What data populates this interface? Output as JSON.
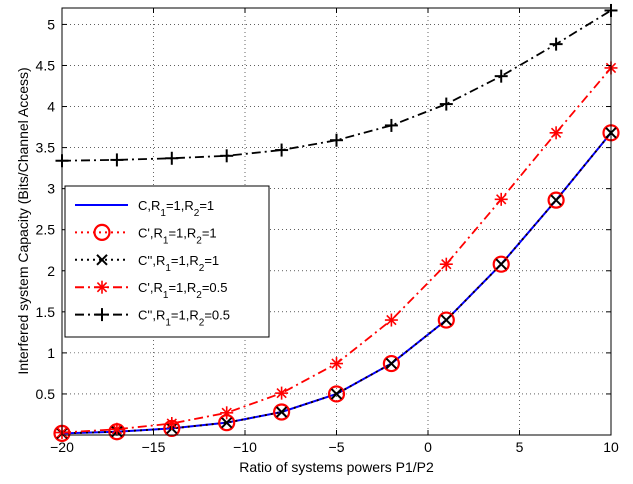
{
  "chart_data": {
    "type": "line",
    "xlabel": "Ratio of systems powers P1/P2",
    "ylabel": "Interfered system Capacity (Bits/Channel Access)",
    "xlim": [
      -20,
      10
    ],
    "ylim": [
      0,
      5.2
    ],
    "xticks": [
      -20,
      -15,
      -10,
      -5,
      0,
      5,
      10
    ],
    "yticks": [
      0.5,
      1,
      1.5,
      2,
      2.5,
      3,
      3.5,
      4,
      4.5,
      5
    ],
    "grid": true,
    "legend_position": "middle-left",
    "series": [
      {
        "name": "C,R1=1,R2=1",
        "legend": {
          "main": "C,R",
          "s1": "1",
          "mid": "=1,R",
          "s2": "2",
          "end": "=1"
        },
        "color": "#0000ff",
        "line": "solid",
        "marker": "none",
        "x": [
          -20,
          -17,
          -14,
          -11,
          -8,
          -5,
          -2,
          1,
          4,
          7,
          10
        ],
        "y": [
          0.02,
          0.04,
          0.08,
          0.15,
          0.28,
          0.5,
          0.87,
          1.4,
          2.08,
          2.86,
          3.68
        ]
      },
      {
        "name": "C',R1=1,R2=1",
        "legend": {
          "main": "C',R",
          "s1": "1",
          "mid": "=1,R",
          "s2": "2",
          "end": "=1"
        },
        "color": "#ff0000",
        "line": "dotted",
        "marker": "circle",
        "x": [
          -20,
          -17,
          -14,
          -11,
          -8,
          -5,
          -2,
          1,
          4,
          7,
          10
        ],
        "y": [
          0.02,
          0.04,
          0.08,
          0.15,
          0.28,
          0.5,
          0.87,
          1.4,
          2.08,
          2.86,
          3.68
        ]
      },
      {
        "name": "C'',R1=1,R2=1",
        "legend": {
          "main": "C'',R",
          "s1": "1",
          "mid": "=1,R",
          "s2": "2",
          "end": "=1"
        },
        "color": "#000000",
        "line": "dotted",
        "marker": "x",
        "x": [
          -20,
          -17,
          -14,
          -11,
          -8,
          -5,
          -2,
          1,
          4,
          7,
          10
        ],
        "y": [
          0.02,
          0.04,
          0.08,
          0.15,
          0.28,
          0.5,
          0.87,
          1.4,
          2.08,
          2.86,
          3.68
        ]
      },
      {
        "name": "C',R1=1,R2=0.5",
        "legend": {
          "main": "C',R",
          "s1": "1",
          "mid": "=1,R",
          "s2": "2",
          "end": "=0.5"
        },
        "color": "#ff0000",
        "line": "dashdot",
        "marker": "star",
        "x": [
          -20,
          -17,
          -14,
          -11,
          -8,
          -5,
          -2,
          1,
          4,
          7,
          10
        ],
        "y": [
          0.03,
          0.07,
          0.14,
          0.27,
          0.51,
          0.87,
          1.4,
          2.08,
          2.87,
          3.68,
          4.47
        ]
      },
      {
        "name": "C'',R1=1,R2=0.5",
        "legend": {
          "main": "C'',R",
          "s1": "1",
          "mid": "=1,R",
          "s2": "2",
          "end": "=0.5"
        },
        "color": "#000000",
        "line": "dashdot",
        "marker": "plus",
        "x": [
          -20,
          -17,
          -14,
          -11,
          -8,
          -5,
          -2,
          1,
          4,
          7,
          10
        ],
        "y": [
          3.34,
          3.35,
          3.37,
          3.4,
          3.47,
          3.59,
          3.77,
          4.03,
          4.37,
          4.76,
          5.17
        ]
      }
    ]
  }
}
